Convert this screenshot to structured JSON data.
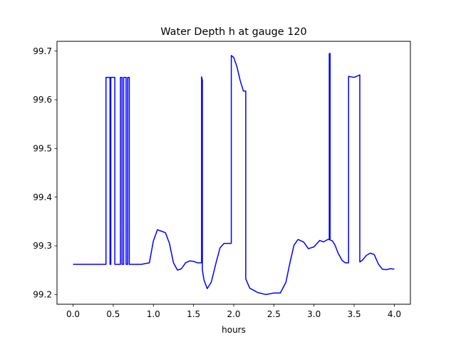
{
  "chart_data": {
    "type": "line",
    "title": "Water Depth h at gauge 120",
    "xlabel": "hours",
    "ylabel": "",
    "xlim": [
      -0.2,
      4.2
    ],
    "ylim": [
      99.18,
      99.72
    ],
    "xticks": [
      0.0,
      0.5,
      1.0,
      1.5,
      2.0,
      2.5,
      3.0,
      3.5,
      4.0
    ],
    "xtick_labels": [
      "0.0",
      "0.5",
      "1.0",
      "1.5",
      "2.0",
      "2.5",
      "3.0",
      "3.5",
      "4.0"
    ],
    "yticks": [
      99.2,
      99.3,
      99.4,
      99.5,
      99.6,
      99.7
    ],
    "ytick_labels": [
      "99.2",
      "99.3",
      "99.4",
      "99.5",
      "99.6",
      "99.7"
    ],
    "grid": false,
    "line_color": "#0000ff",
    "series": [
      {
        "x": [
          0.0,
          0.41,
          0.41,
          0.46,
          0.46,
          0.47,
          0.47,
          0.52,
          0.52,
          0.59,
          0.59,
          0.61,
          0.61,
          0.63,
          0.63,
          0.66,
          0.66,
          0.68,
          0.68,
          0.7,
          0.7,
          0.85,
          0.95,
          1.0,
          1.05,
          1.1,
          1.15,
          1.2,
          1.25,
          1.3,
          1.35,
          1.4,
          1.45,
          1.5,
          1.55,
          1.6,
          1.6,
          1.61,
          1.61,
          1.63,
          1.67,
          1.72,
          1.78,
          1.83,
          1.88,
          1.93,
          1.97,
          1.97,
          2.0,
          2.04,
          2.08,
          2.12,
          2.15,
          2.15,
          2.2,
          2.3,
          2.4,
          2.5,
          2.58,
          2.65,
          2.7,
          2.75,
          2.8,
          2.87,
          2.93,
          3.0,
          3.07,
          3.12,
          3.17,
          3.19,
          3.19,
          3.2,
          3.2,
          3.23,
          3.26,
          3.3,
          3.35,
          3.39,
          3.42,
          3.43,
          3.43,
          3.5,
          3.57,
          3.57,
          3.6,
          3.65,
          3.7,
          3.75,
          3.8,
          3.85,
          3.9,
          3.95,
          4.0
        ],
        "y": [
          99.262,
          99.262,
          99.646,
          99.646,
          99.262,
          99.262,
          99.646,
          99.646,
          99.262,
          99.262,
          99.646,
          99.646,
          99.262,
          99.262,
          99.646,
          99.646,
          99.262,
          99.262,
          99.646,
          99.646,
          99.262,
          99.262,
          99.265,
          99.31,
          99.333,
          99.33,
          99.327,
          99.305,
          99.265,
          99.25,
          99.253,
          99.265,
          99.269,
          99.268,
          99.265,
          99.265,
          99.647,
          99.64,
          99.25,
          99.23,
          99.212,
          99.225,
          99.265,
          99.296,
          99.305,
          99.305,
          99.305,
          99.691,
          99.687,
          99.668,
          99.64,
          99.618,
          99.618,
          99.232,
          99.213,
          99.204,
          99.2,
          99.203,
          99.203,
          99.225,
          99.265,
          99.301,
          99.313,
          99.308,
          99.294,
          99.298,
          99.311,
          99.308,
          99.313,
          99.313,
          99.695,
          99.695,
          99.312,
          99.31,
          99.302,
          99.285,
          99.27,
          99.265,
          99.265,
          99.265,
          99.648,
          99.646,
          99.651,
          99.267,
          99.27,
          99.28,
          99.285,
          99.282,
          99.263,
          99.252,
          99.251,
          99.253,
          99.252
        ]
      }
    ]
  }
}
